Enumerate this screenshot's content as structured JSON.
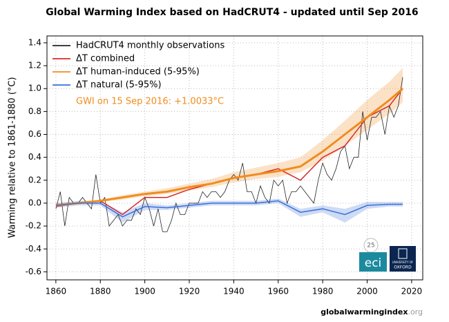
{
  "chart_data": {
    "type": "line",
    "title": "Global Warming Index based on HadCRUT4 - updated until Sep 2016",
    "y_label": "Warming relative to 1861-1880 (°C)",
    "annotation": "GWI on 15 Sep 2016: +1.0033°C",
    "xlim": [
      1856,
      2025
    ],
    "ylim": [
      -0.67,
      1.46
    ],
    "xticks": [
      1860,
      1880,
      1900,
      1920,
      1940,
      1960,
      1980,
      2000,
      2020
    ],
    "yticks": [
      -0.6,
      -0.4,
      -0.2,
      {
        "value": 0,
        "label": "0.0"
      },
      0.2,
      0.4,
      0.6,
      0.8,
      {
        "value": 1,
        "label": "1.0"
      },
      1.2,
      1.4
    ],
    "grid": true,
    "legend": "top-left",
    "obs": {
      "name": "HadCRUT4 monthly observations",
      "color": "#222222",
      "x": [
        1860,
        1862,
        1864,
        1866,
        1868,
        1870,
        1872,
        1874,
        1876,
        1878,
        1880,
        1882,
        1884,
        1886,
        1888,
        1890,
        1892,
        1894,
        1896,
        1898,
        1900,
        1902,
        1904,
        1906,
        1908,
        1910,
        1912,
        1914,
        1916,
        1918,
        1920,
        1922,
        1924,
        1926,
        1928,
        1930,
        1932,
        1934,
        1936,
        1938,
        1940,
        1942,
        1944,
        1946,
        1948,
        1950,
        1952,
        1954,
        1956,
        1958,
        1960,
        1962,
        1964,
        1966,
        1968,
        1970,
        1972,
        1974,
        1976,
        1978,
        1980,
        1982,
        1984,
        1986,
        1988,
        1990,
        1992,
        1994,
        1996,
        1998,
        2000,
        2002,
        2004,
        2006,
        2008,
        2010,
        2012,
        2014,
        2016
      ],
      "values": [
        -0.05,
        0.1,
        -0.2,
        0.05,
        0,
        0,
        0.05,
        0,
        -0.05,
        0.25,
        0,
        0.05,
        -0.2,
        -0.15,
        -0.1,
        -0.2,
        -0.15,
        -0.15,
        -0.05,
        -0.1,
        0.05,
        -0.05,
        -0.2,
        -0.05,
        -0.25,
        -0.25,
        -0.15,
        0,
        -0.1,
        -0.1,
        0,
        0,
        0,
        0.1,
        0.05,
        0.1,
        0.1,
        0.05,
        0.1,
        0.2,
        0.25,
        0.2,
        0.35,
        0.1,
        0.1,
        0,
        0.15,
        0.05,
        0,
        0.2,
        0.15,
        0.2,
        0,
        0.1,
        0.1,
        0.15,
        0.1,
        0.05,
        0,
        0.2,
        0.35,
        0.25,
        0.2,
        0.3,
        0.45,
        0.5,
        0.3,
        0.4,
        0.4,
        0.8,
        0.55,
        0.75,
        0.75,
        0.8,
        0.6,
        0.85,
        0.75,
        0.85,
        1.1
      ]
    },
    "x": [
      1860,
      1870,
      1880,
      1890,
      1900,
      1910,
      1920,
      1930,
      1940,
      1950,
      1960,
      1970,
      1980,
      1990,
      2000,
      2010,
      2016
    ],
    "series": [
      {
        "name": "ΔT combined",
        "color": "#d42a2a",
        "values": [
          -0.03,
          0,
          0.02,
          -0.1,
          0.05,
          0.05,
          0.12,
          0.17,
          0.22,
          0.25,
          0.3,
          0.2,
          0.4,
          0.5,
          0.75,
          0.85,
          1.0
        ]
      },
      {
        "name": "ΔT human-induced (5-95%)",
        "color": "#f08c1e",
        "values": [
          -0.02,
          0,
          0.02,
          0.05,
          0.08,
          0.1,
          0.14,
          0.17,
          0.22,
          0.25,
          0.28,
          0.32,
          0.45,
          0.6,
          0.75,
          0.9,
          1.0
        ],
        "lower": [
          -0.03,
          -0.01,
          0.01,
          0.03,
          0.06,
          0.08,
          0.11,
          0.14,
          0.18,
          0.21,
          0.23,
          0.27,
          0.37,
          0.5,
          0.64,
          0.78,
          0.88
        ],
        "upper": [
          0,
          0.01,
          0.03,
          0.07,
          0.1,
          0.13,
          0.17,
          0.21,
          0.27,
          0.31,
          0.35,
          0.4,
          0.55,
          0.72,
          0.9,
          1.06,
          1.18
        ]
      },
      {
        "name": "ΔT natural (5-95%)",
        "color": "#3a6fd8",
        "values": [
          -0.02,
          0,
          0,
          -0.12,
          -0.03,
          -0.04,
          -0.02,
          0,
          0,
          0,
          0.02,
          -0.08,
          -0.05,
          -0.1,
          -0.02,
          -0.01,
          -0.01
        ],
        "lower": [
          -0.04,
          -0.02,
          -0.02,
          -0.17,
          -0.06,
          -0.06,
          -0.04,
          -0.02,
          -0.02,
          -0.02,
          0,
          -0.12,
          -0.08,
          -0.17,
          -0.05,
          -0.03,
          -0.03
        ],
        "upper": [
          0,
          0.02,
          0.02,
          -0.08,
          0,
          -0.02,
          0,
          0.02,
          0.02,
          0.02,
          0.04,
          -0.05,
          -0.02,
          -0.05,
          0.01,
          0.01,
          0.01
        ]
      }
    ],
    "logos": {
      "badge": "25",
      "eci": "eci",
      "oxford_top": "UNIVERSITY OF",
      "oxford_bottom": "OXFORD"
    },
    "footer": {
      "main": "globalwarmingindex",
      "suffix": ".org"
    }
  }
}
